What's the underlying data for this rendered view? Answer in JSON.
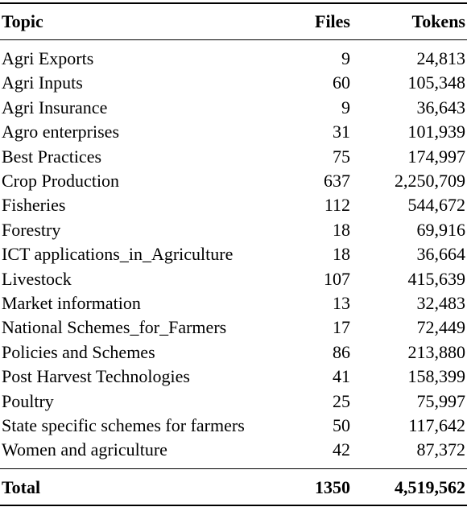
{
  "table": {
    "header": [
      "Topic",
      "Files",
      "Tokens"
    ],
    "rows": [
      [
        "Agri Exports",
        "9",
        "24,813"
      ],
      [
        "Agri Inputs",
        "60",
        "105,348"
      ],
      [
        "Agri Insurance",
        "9",
        "36,643"
      ],
      [
        "Agro enterprises",
        "31",
        "101,939"
      ],
      [
        "Best Practices",
        "75",
        "174,997"
      ],
      [
        "Crop Production",
        "637",
        "2,250,709"
      ],
      [
        "Fisheries",
        "112",
        "544,672"
      ],
      [
        "Forestry",
        "18",
        "69,916"
      ],
      [
        "ICT applications_in_Agriculture",
        "18",
        "36,664"
      ],
      [
        "Livestock",
        "107",
        "415,639"
      ],
      [
        "Market information",
        "13",
        "32,483"
      ],
      [
        "National Schemes_for_Farmers",
        "17",
        "72,449"
      ],
      [
        "Policies and Schemes",
        "86",
        "213,880"
      ],
      [
        "Post Harvest Technologies",
        "41",
        "158,399"
      ],
      [
        "Poultry",
        "25",
        "75,997"
      ],
      [
        "State specific schemes for farmers",
        "50",
        "117,642"
      ],
      [
        "Women and agriculture",
        "42",
        "87,372"
      ]
    ],
    "total": [
      "Total",
      "1350",
      "4,519,562"
    ]
  }
}
